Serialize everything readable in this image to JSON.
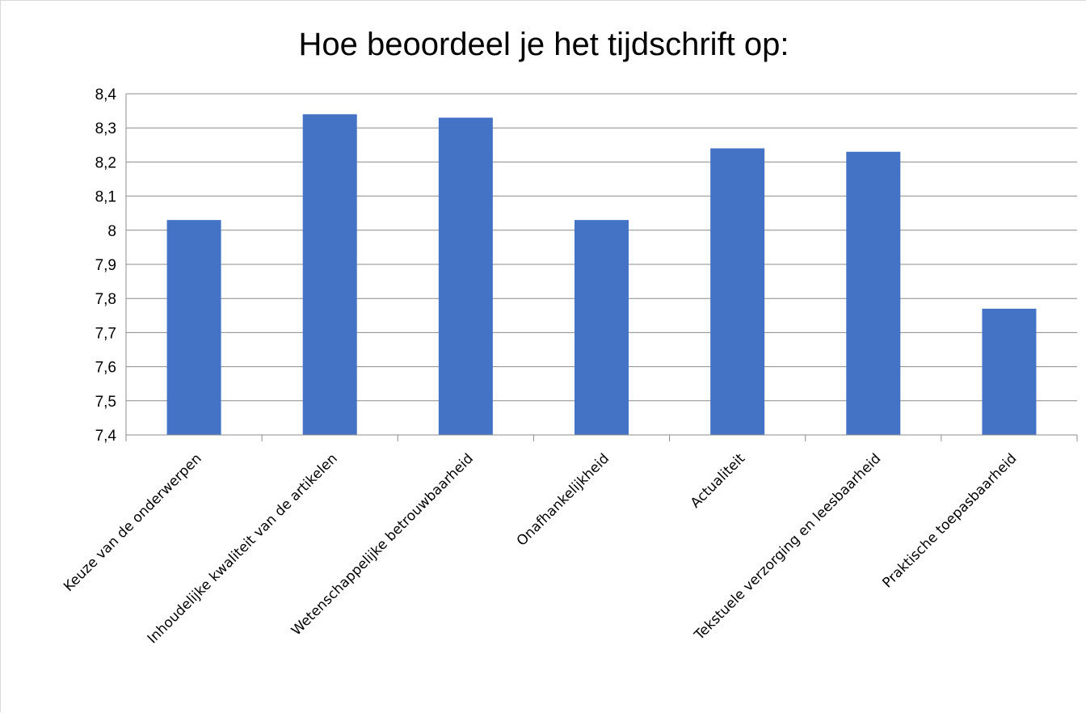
{
  "chart_data": {
    "type": "bar",
    "title": "Hoe beoordeel je het tijdschrift op:",
    "xlabel": "",
    "ylabel": "",
    "categories": [
      "Keuze van de onderwerpen",
      "Inhoudelijke kwaliteit van de artikelen",
      "Wetenschappelijke betrouwbaarheid",
      "Onafhankelijkheid",
      "Actualiteit",
      "Tekstuele verzorging en leesbaarheid",
      "Praktische toepasbaarheid"
    ],
    "values": [
      8.03,
      8.34,
      8.33,
      8.03,
      8.24,
      8.23,
      7.77
    ],
    "ylim": [
      7.4,
      8.4
    ],
    "yticks": [
      "7,4",
      "7,5",
      "7,6",
      "7,7",
      "7,8",
      "7,9",
      "8",
      "8,1",
      "8,2",
      "8,3",
      "8,4"
    ],
    "grid": true,
    "legend": "none",
    "bar_color": "#4472c4",
    "grid_color": "#8c8c8c"
  }
}
